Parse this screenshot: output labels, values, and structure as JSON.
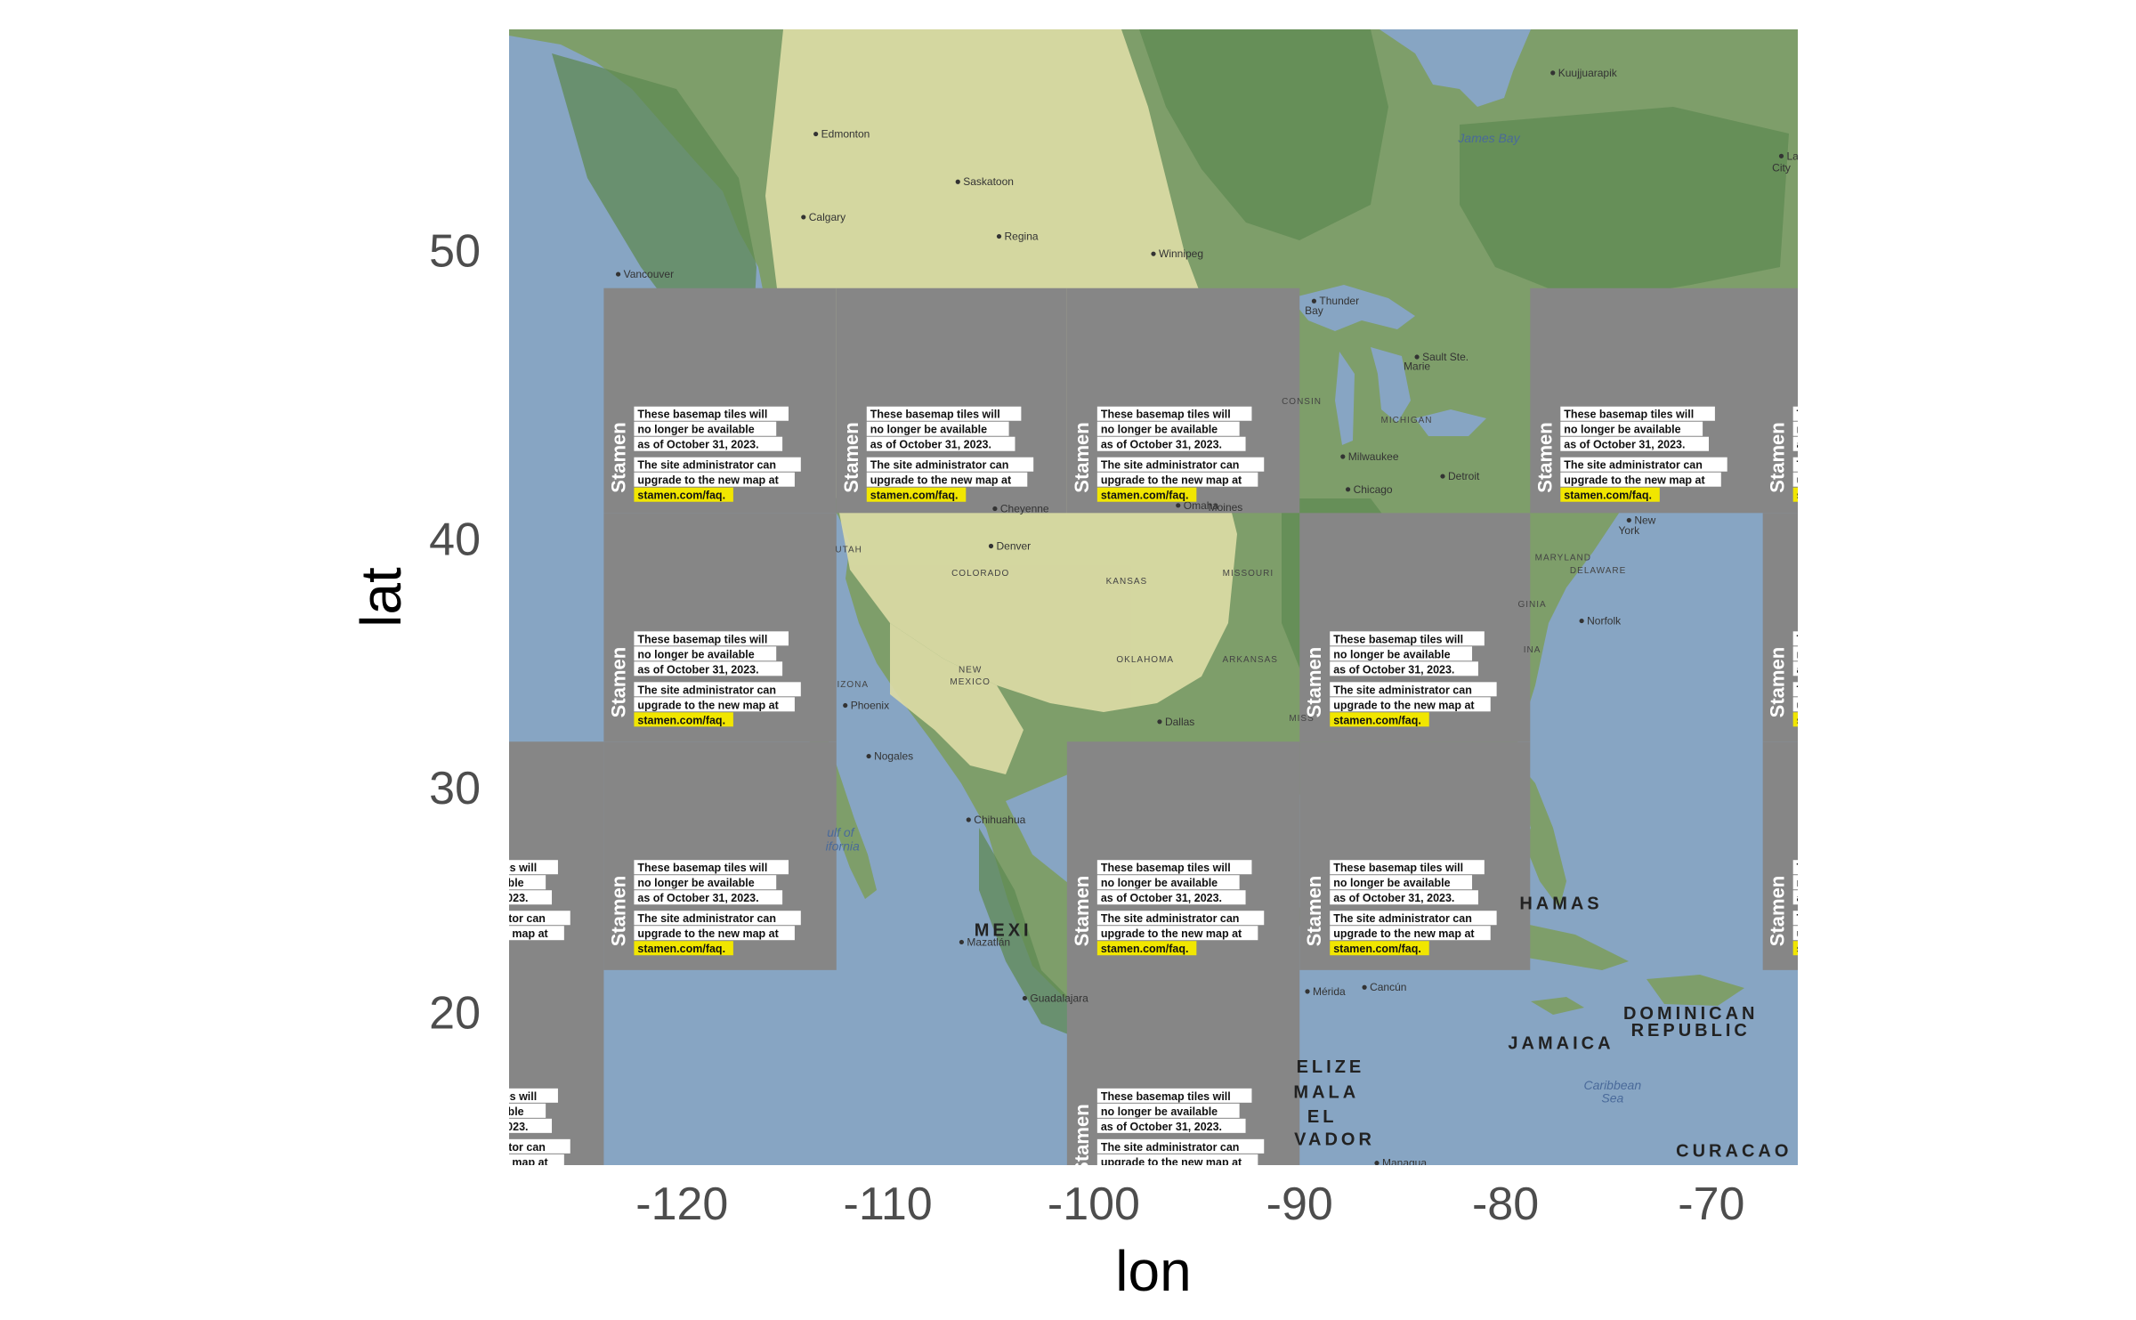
{
  "axes": {
    "xlabel": "lon",
    "ylabel": "lat",
    "xlim": [
      -128.4,
      -65.8
    ],
    "ylim": [
      12.8,
      56.5
    ],
    "x_ticks": [
      {
        "value": -120,
        "label": "-120"
      },
      {
        "value": -110,
        "label": "-110"
      },
      {
        "value": -100,
        "label": "-100"
      },
      {
        "value": -90,
        "label": "-90"
      },
      {
        "value": -80,
        "label": "-80"
      },
      {
        "value": -70,
        "label": "-70"
      }
    ],
    "y_ticks": [
      {
        "value": 50,
        "label": "50"
      },
      {
        "value": 40,
        "label": "40"
      },
      {
        "value": 30,
        "label": "30"
      },
      {
        "value": 20,
        "label": "20"
      }
    ]
  },
  "colors": {
    "ocean": "#87a5c3",
    "land": "#7e9e6a",
    "plains": "#dedda6",
    "forest": "#5f8a53",
    "tile_gray": "#868686",
    "highlight": "#f1e600"
  },
  "tile_notice": {
    "brand": "Stamen",
    "lines_1": [
      "These basemap tiles will",
      "no longer be available",
      "as of October 31, 2023."
    ],
    "lines_2": [
      "The site administrator can",
      "upgrade to the new map at"
    ],
    "link": "stamen.com/faq."
  },
  "gray_tiles": [
    {
      "lon": [
        -123.8,
        -112.5
      ],
      "lat": [
        40.98,
        48.8
      ]
    },
    {
      "lon": [
        -112.5,
        -101.3
      ],
      "lat": [
        40.98,
        48.8
      ]
    },
    {
      "lon": [
        -101.3,
        -90.0
      ],
      "lat": [
        40.98,
        48.8
      ]
    },
    {
      "lon": [
        -78.8,
        -65.8
      ],
      "lat": [
        40.98,
        48.8
      ]
    },
    {
      "lon": [
        -123.8,
        -112.5
      ],
      "lat": [
        31.95,
        40.98
      ]
    },
    {
      "lon": [
        -90.0,
        -78.8
      ],
      "lat": [
        31.95,
        40.98
      ]
    },
    {
      "lon": [
        -67.5,
        -65.8
      ],
      "lat": [
        31.95,
        40.98
      ]
    },
    {
      "lon": [
        -128.4,
        -123.8
      ],
      "lat": [
        12.8,
        31.95
      ]
    },
    {
      "lon": [
        -123.8,
        -112.5
      ],
      "lat": [
        21.95,
        31.95
      ]
    },
    {
      "lon": [
        -101.3,
        -90.0
      ],
      "lat": [
        12.8,
        31.95
      ]
    },
    {
      "lon": [
        -90.0,
        -78.8
      ],
      "lat": [
        21.95,
        31.95
      ]
    },
    {
      "lon": [
        -67.5,
        -65.8
      ],
      "lat": [
        21.95,
        31.95
      ]
    }
  ],
  "notice_tiles": [
    {
      "lon": -123.8,
      "lat": 48.8,
      "partial": false
    },
    {
      "lon": -112.5,
      "lat": 48.8,
      "partial": false
    },
    {
      "lon": -101.3,
      "lat": 48.8,
      "partial": false
    },
    {
      "lon": -78.8,
      "lat": 48.8,
      "partial": false
    },
    {
      "lon": -67.5,
      "lat": 48.8,
      "partial": true
    },
    {
      "lon": -123.8,
      "lat": 40.98,
      "partial": false
    },
    {
      "lon": -90.0,
      "lat": 40.98,
      "partial": false
    },
    {
      "lon": -67.5,
      "lat": 40.98,
      "partial": true
    },
    {
      "lon": -135.0,
      "lat": 31.95,
      "partial": true
    },
    {
      "lon": -123.8,
      "lat": 31.95,
      "partial": false
    },
    {
      "lon": -101.3,
      "lat": 31.95,
      "partial": false
    },
    {
      "lon": -90.0,
      "lat": 31.95,
      "partial": false
    },
    {
      "lon": -67.5,
      "lat": 31.95,
      "partial": true
    },
    {
      "lon": -135.0,
      "lat": 21.95,
      "partial": true
    },
    {
      "lon": -101.3,
      "lat": 21.95,
      "partial": false
    }
  ],
  "places": [
    {
      "name": "Kuujjuarapik",
      "lon": -77.7,
      "lat": 55.3,
      "dot": true
    },
    {
      "name": "Edmonton",
      "lon": -113.5,
      "lat": 53.55,
      "dot": true
    },
    {
      "name": "James Bay",
      "lon": -80.8,
      "lat": 53.3,
      "dot": false,
      "kind": "water"
    },
    {
      "name": "Labra",
      "lon": -66.6,
      "lat": 52.9,
      "dot": true
    },
    {
      "name": "City",
      "lon": -66.6,
      "lat": 52.45,
      "dot": false
    },
    {
      "name": "Saskatoon",
      "lon": -106.6,
      "lat": 52.13,
      "dot": true
    },
    {
      "name": "Calgary",
      "lon": -114.1,
      "lat": 51.05,
      "dot": true
    },
    {
      "name": "Regina",
      "lon": -104.6,
      "lat": 50.45,
      "dot": true
    },
    {
      "name": "Winnipeg",
      "lon": -97.1,
      "lat": 49.9,
      "dot": true
    },
    {
      "name": "Vancouver",
      "lon": -123.1,
      "lat": 49.25,
      "dot": true
    },
    {
      "name": "Thunder",
      "lon": -89.3,
      "lat": 48.38,
      "dot": true
    },
    {
      "name": "Bay",
      "lon": -89.3,
      "lat": 47.95,
      "dot": false
    },
    {
      "name": "Sault Ste.",
      "lon": -84.3,
      "lat": 46.52,
      "dot": true
    },
    {
      "name": "Marie",
      "lon": -84.3,
      "lat": 46.08,
      "dot": false
    },
    {
      "name": "MICHIGAN",
      "lon": -84.8,
      "lat": 44.25,
      "dot": false,
      "kind": "region"
    },
    {
      "name": "CONSIN",
      "lon": -89.9,
      "lat": 44.9,
      "dot": false,
      "kind": "region"
    },
    {
      "name": "Milwaukee",
      "lon": -87.9,
      "lat": 43.04,
      "dot": true
    },
    {
      "name": "Detroit",
      "lon": -83.05,
      "lat": 42.33,
      "dot": true
    },
    {
      "name": "Chicago",
      "lon": -87.65,
      "lat": 41.85,
      "dot": true
    },
    {
      "name": "Cheyenne",
      "lon": -104.8,
      "lat": 41.14,
      "dot": true
    },
    {
      "name": "Omaha",
      "lon": -95.9,
      "lat": 41.26,
      "dot": true
    },
    {
      "name": "Moines",
      "lon": -93.6,
      "lat": 41.06,
      "dot": false
    },
    {
      "name": "New",
      "lon": -74.0,
      "lat": 40.71,
      "dot": true
    },
    {
      "name": "York",
      "lon": -74.0,
      "lat": 40.2,
      "dot": false
    },
    {
      "name": "Denver",
      "lon": -104.99,
      "lat": 39.74,
      "dot": true
    },
    {
      "name": "UTAH",
      "lon": -111.9,
      "lat": 39.5,
      "dot": false,
      "kind": "region"
    },
    {
      "name": "MARYLAND",
      "lon": -77.2,
      "lat": 39.2,
      "dot": false,
      "kind": "region"
    },
    {
      "name": "COLORADO",
      "lon": -105.5,
      "lat": 38.6,
      "dot": false,
      "kind": "region"
    },
    {
      "name": "MISSOURI",
      "lon": -92.5,
      "lat": 38.6,
      "dot": false,
      "kind": "region"
    },
    {
      "name": "DELAWARE",
      "lon": -75.5,
      "lat": 38.7,
      "dot": false,
      "kind": "region"
    },
    {
      "name": "KANSAS",
      "lon": -98.4,
      "lat": 38.3,
      "dot": false,
      "kind": "region"
    },
    {
      "name": "GINIA",
      "lon": -78.7,
      "lat": 37.4,
      "dot": false,
      "kind": "region"
    },
    {
      "name": "Norfolk",
      "lon": -76.3,
      "lat": 36.85,
      "dot": true
    },
    {
      "name": "INA",
      "lon": -78.7,
      "lat": 35.6,
      "dot": false,
      "kind": "region"
    },
    {
      "name": "ARKANSAS",
      "lon": -92.4,
      "lat": 35.2,
      "dot": false,
      "kind": "region"
    },
    {
      "name": "OKLAHOMA",
      "lon": -97.5,
      "lat": 35.2,
      "dot": false,
      "kind": "region"
    },
    {
      "name": "NEW",
      "lon": -106.0,
      "lat": 34.8,
      "dot": false,
      "kind": "region"
    },
    {
      "name": "MEXICO",
      "lon": -106.0,
      "lat": 34.3,
      "dot": false,
      "kind": "region"
    },
    {
      "name": "IZONA",
      "lon": -111.7,
      "lat": 34.2,
      "dot": false,
      "kind": "region"
    },
    {
      "name": "MISS",
      "lon": -89.9,
      "lat": 32.8,
      "dot": false,
      "kind": "region"
    },
    {
      "name": "Phoenix",
      "lon": -112.07,
      "lat": 33.45,
      "dot": true
    },
    {
      "name": "Dallas",
      "lon": -96.8,
      "lat": 32.78,
      "dot": true
    },
    {
      "name": "Nogales",
      "lon": -110.93,
      "lat": 31.34,
      "dot": true
    },
    {
      "name": "Chihuahua",
      "lon": -106.08,
      "lat": 28.63,
      "dot": true
    },
    {
      "name": "ulf of",
      "lon": -112.3,
      "lat": 27.9,
      "dot": false,
      "kind": "water"
    },
    {
      "name": "ifornia",
      "lon": -112.2,
      "lat": 27.3,
      "dot": false,
      "kind": "water"
    },
    {
      "name": "HAMAS",
      "lon": -77.3,
      "lat": 24.7,
      "dot": false,
      "kind": "big"
    },
    {
      "name": "MEXI",
      "lon": -104.4,
      "lat": 23.5,
      "dot": false,
      "kind": "big"
    },
    {
      "name": "Mazatlán",
      "lon": -106.42,
      "lat": 23.22,
      "dot": true
    },
    {
      "name": "Mérida",
      "lon": -89.62,
      "lat": 20.97,
      "dot": true
    },
    {
      "name": "Cancún",
      "lon": -86.85,
      "lat": 21.16,
      "dot": true
    },
    {
      "name": "Guadalajara",
      "lon": -103.35,
      "lat": 20.66,
      "dot": true
    },
    {
      "name": "DOMINICAN",
      "lon": -71.0,
      "lat": 19.7,
      "dot": false,
      "kind": "big"
    },
    {
      "name": "REPUBLIC",
      "lon": -71.0,
      "lat": 18.9,
      "dot": false,
      "kind": "big"
    },
    {
      "name": "JAMAICA",
      "lon": -77.3,
      "lat": 18.3,
      "dot": false,
      "kind": "big"
    },
    {
      "name": "ELIZE",
      "lon": -88.5,
      "lat": 17.2,
      "dot": false,
      "kind": "big"
    },
    {
      "name": "Caribbean",
      "lon": -74.8,
      "lat": 16.4,
      "dot": false,
      "kind": "water"
    },
    {
      "name": "Sea",
      "lon": -74.8,
      "lat": 15.8,
      "dot": false,
      "kind": "water"
    },
    {
      "name": "MALA",
      "lon": -88.7,
      "lat": 16.0,
      "dot": false,
      "kind": "big"
    },
    {
      "name": "EL",
      "lon": -88.9,
      "lat": 14.85,
      "dot": false,
      "kind": "big"
    },
    {
      "name": "VADOR",
      "lon": -88.3,
      "lat": 13.75,
      "dot": false,
      "kind": "big"
    },
    {
      "name": "CURACAO",
      "lon": -68.9,
      "lat": 13.2,
      "dot": false,
      "kind": "big"
    },
    {
      "name": "Managua",
      "lon": -86.25,
      "lat": 12.9,
      "dot": true
    }
  ]
}
